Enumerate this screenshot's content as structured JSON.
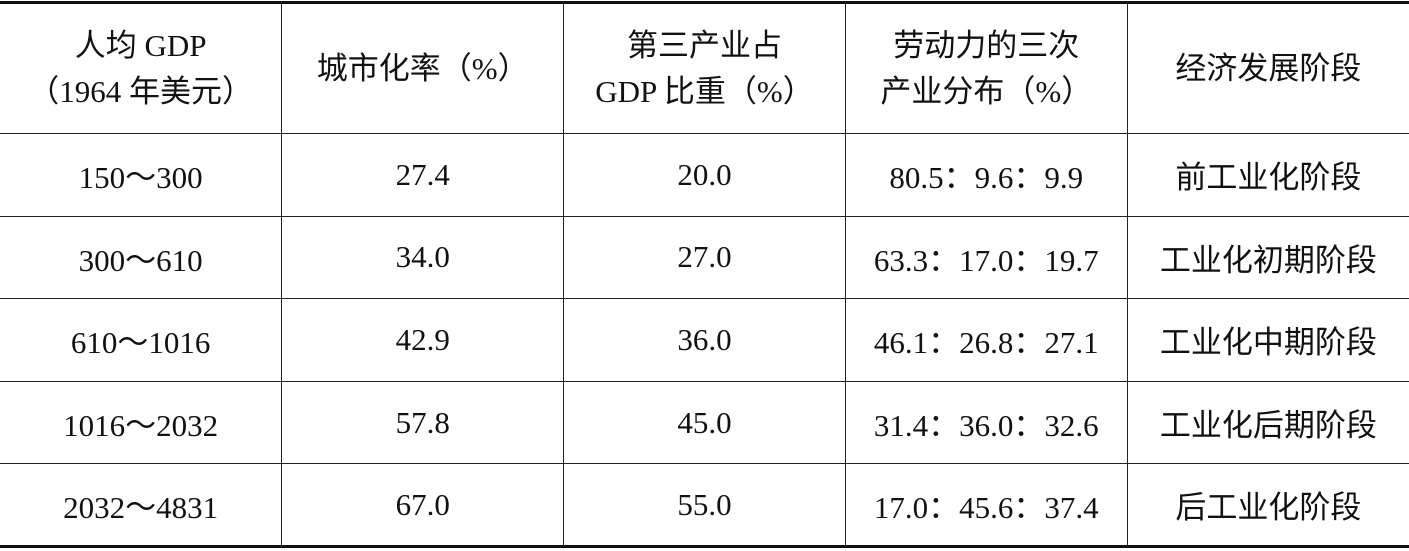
{
  "table": {
    "header": [
      [
        "人均 GDP",
        "（1964 年美元）"
      ],
      [
        "城市化率（%）"
      ],
      [
        "第三产业占",
        "GDP 比重（%）"
      ],
      [
        "劳动力的三次",
        "产业分布（%）"
      ],
      [
        "经济发展阶段"
      ]
    ],
    "rows": [
      [
        "150～300",
        "27.4",
        "20.0",
        "80.5：9.6：9.9",
        "前工业化阶段"
      ],
      [
        "300～610",
        "34.0",
        "27.0",
        "63.3：17.0：19.7",
        "工业化初期阶段"
      ],
      [
        "610～1016",
        "42.9",
        "36.0",
        "46.1：26.8：27.1",
        "工业化中期阶段"
      ],
      [
        "1016～2032",
        "57.8",
        "45.0",
        "31.4：36.0：32.6",
        "工业化后期阶段"
      ],
      [
        "2032～4831",
        "67.0",
        "55.0",
        "17.0：45.6：37.4",
        "后工业化阶段"
      ]
    ]
  }
}
